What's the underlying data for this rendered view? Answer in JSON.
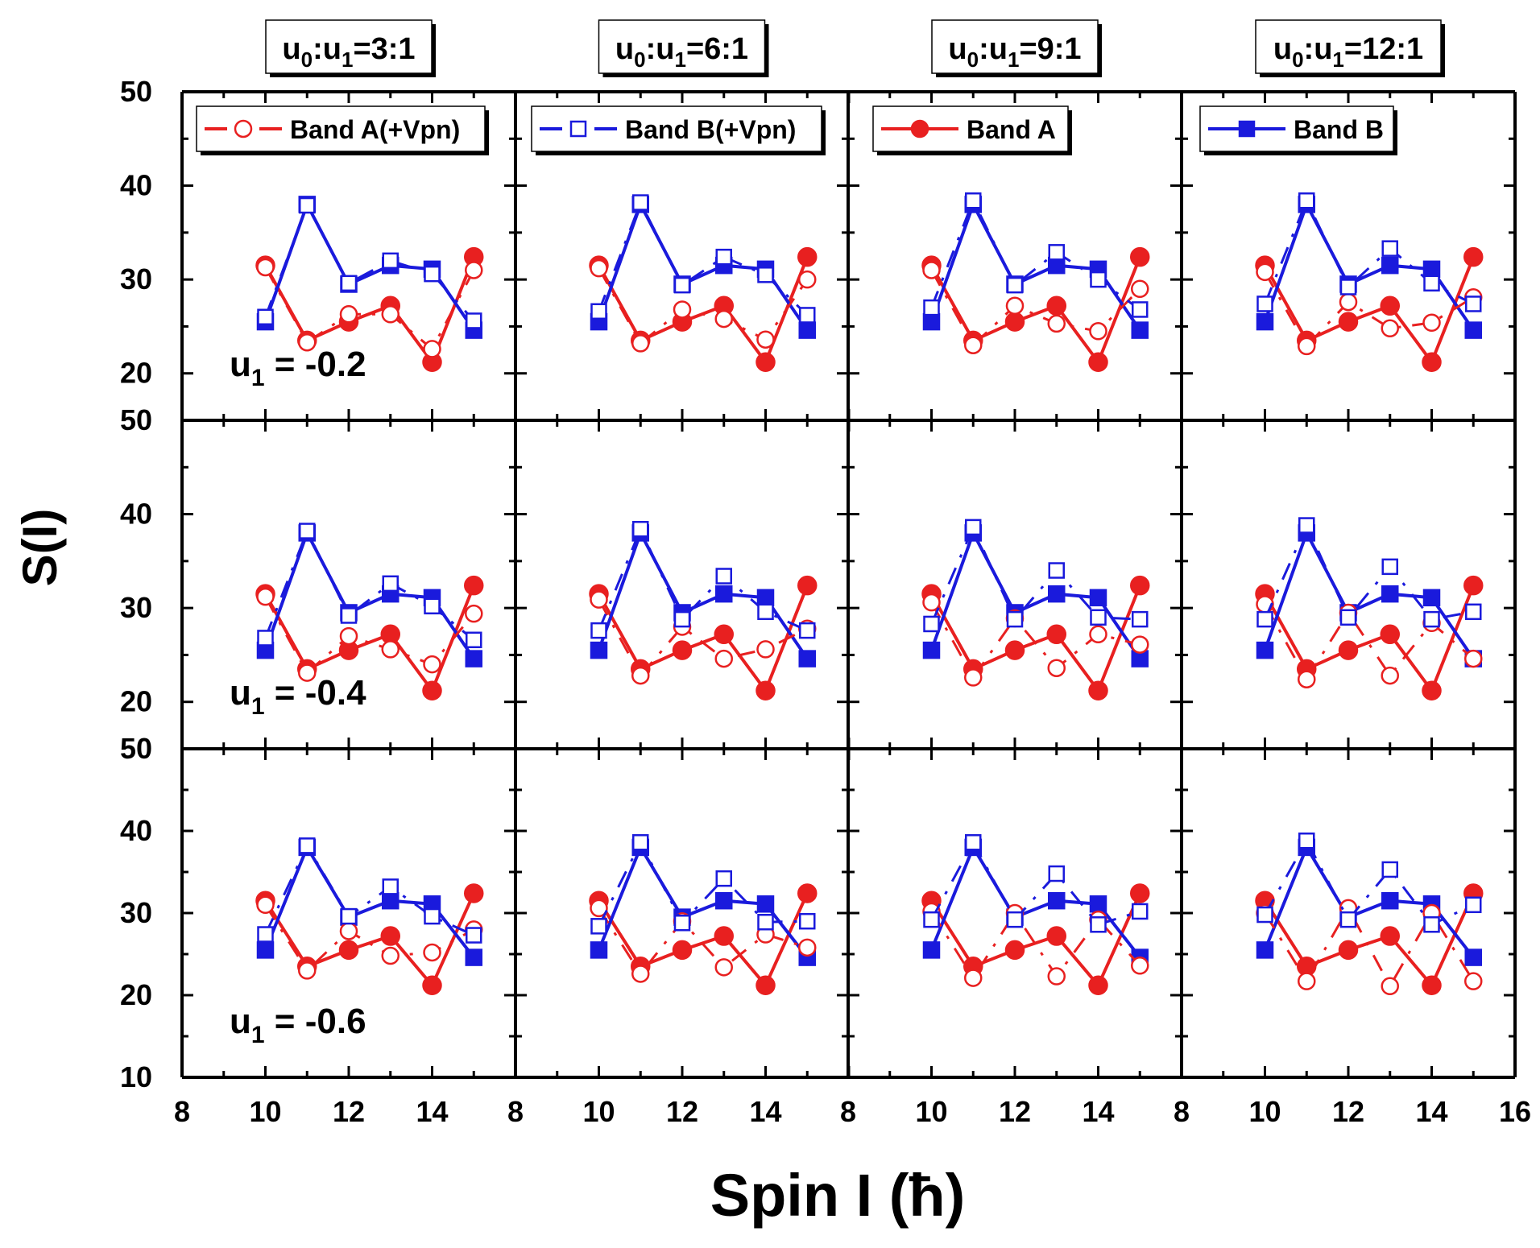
{
  "colors": {
    "band_a": "#e82020",
    "band_b": "#1a1adc",
    "axis": "#000000",
    "background": "#ffffff"
  },
  "figure": {
    "ylabel": "S(I)",
    "xlabel": "Spin I (ħ)"
  },
  "column_headers": [
    {
      "base": "u",
      "sub0": "0",
      "sep": ":u",
      "sub1": "1",
      "ratio": "=3:1"
    },
    {
      "base": "u",
      "sub0": "0",
      "sep": ":u",
      "sub1": "1",
      "ratio": "=6:1"
    },
    {
      "base": "u",
      "sub0": "0",
      "sep": ":u",
      "sub1": "1",
      "ratio": "=9:1"
    },
    {
      "base": "u",
      "sub0": "0",
      "sep": ":u",
      "sub1": "1",
      "ratio": "=12:1"
    }
  ],
  "row_labels": [
    {
      "base": "u",
      "sub": "1",
      "value": " = -0.2"
    },
    {
      "base": "u",
      "sub": "1",
      "value": " = -0.4"
    },
    {
      "base": "u",
      "sub": "1",
      "value": " = -0.6"
    }
  ],
  "legend": [
    {
      "label": "Band A(+Vpn)",
      "series": "band_a_vpn",
      "panel_col": 0
    },
    {
      "label": "Band B(+Vpn)",
      "series": "band_b_vpn",
      "panel_col": 1
    },
    {
      "label": "Band A",
      "series": "band_a",
      "panel_col": 2
    },
    {
      "label": "Band B",
      "series": "band_b",
      "panel_col": 3
    }
  ],
  "axis": {
    "x_ticks_first": [
      "8",
      "10",
      "12",
      "14"
    ],
    "x_ticks_last": [
      "8",
      "10",
      "12",
      "14",
      "16"
    ],
    "y_ticks_top": [
      "20",
      "30",
      "40",
      "50"
    ],
    "y_ticks_bottom": [
      "10",
      "20",
      "30",
      "40",
      "50"
    ]
  },
  "chart_data": {
    "type": "line",
    "layout": "3x4 grid of panels sharing axes",
    "xlabel": "Spin I (ħ)",
    "ylabel": "S(I)",
    "xlim": [
      8,
      16
    ],
    "ylim_top_rows": [
      15,
      50
    ],
    "ylim_bottom_row": [
      10,
      50
    ],
    "x": [
      10,
      11,
      12,
      13,
      14,
      15
    ],
    "band_a": [
      31.5,
      23.5,
      25.5,
      27.2,
      21.2,
      32.4
    ],
    "band_b": [
      25.5,
      38.0,
      29.5,
      31.5,
      31.1,
      24.6
    ],
    "panels": [
      {
        "row": 0,
        "col": 0,
        "band_a_vpn": [
          31.3,
          23.3,
          26.3,
          26.3,
          22.6,
          31.0
        ],
        "band_b_vpn": [
          26.0,
          37.9,
          29.6,
          32.0,
          30.6,
          25.6
        ]
      },
      {
        "row": 0,
        "col": 1,
        "band_a_vpn": [
          31.2,
          23.2,
          26.8,
          25.8,
          23.6,
          30.0
        ],
        "band_b_vpn": [
          26.6,
          38.2,
          29.4,
          32.4,
          30.5,
          26.2
        ]
      },
      {
        "row": 0,
        "col": 2,
        "band_a_vpn": [
          31.0,
          23.0,
          27.2,
          25.3,
          24.5,
          29.0
        ],
        "band_b_vpn": [
          27.0,
          38.4,
          29.4,
          32.9,
          30.0,
          26.8
        ]
      },
      {
        "row": 0,
        "col": 3,
        "band_a_vpn": [
          30.8,
          22.9,
          27.6,
          24.8,
          25.4,
          28.1
        ],
        "band_b_vpn": [
          27.4,
          38.4,
          29.2,
          33.3,
          29.6,
          27.4
        ]
      },
      {
        "row": 1,
        "col": 0,
        "band_a_vpn": [
          31.2,
          23.1,
          27.0,
          25.6,
          24.0,
          29.4
        ],
        "band_b_vpn": [
          26.8,
          38.2,
          29.2,
          32.6,
          30.2,
          26.6
        ]
      },
      {
        "row": 1,
        "col": 1,
        "band_a_vpn": [
          30.9,
          22.8,
          28.0,
          24.6,
          25.6,
          27.8
        ],
        "band_b_vpn": [
          27.6,
          38.4,
          28.8,
          33.4,
          29.6,
          27.6
        ]
      },
      {
        "row": 1,
        "col": 2,
        "band_a_vpn": [
          30.6,
          22.6,
          28.9,
          23.6,
          27.2,
          26.1
        ],
        "band_b_vpn": [
          28.3,
          38.6,
          28.8,
          34.0,
          29.0,
          28.8
        ]
      },
      {
        "row": 1,
        "col": 3,
        "band_a_vpn": [
          30.4,
          22.4,
          29.5,
          22.8,
          28.4,
          24.6
        ],
        "band_b_vpn": [
          28.8,
          38.8,
          29.0,
          34.4,
          28.8,
          29.6
        ]
      },
      {
        "row": 2,
        "col": 0,
        "band_a_vpn": [
          31.0,
          23.0,
          27.8,
          24.8,
          25.2,
          28.0
        ],
        "band_b_vpn": [
          27.4,
          38.2,
          29.6,
          33.2,
          29.6,
          27.3
        ]
      },
      {
        "row": 2,
        "col": 1,
        "band_a_vpn": [
          30.6,
          22.6,
          29.0,
          23.4,
          27.4,
          25.8
        ],
        "band_b_vpn": [
          28.4,
          38.6,
          28.8,
          34.2,
          28.9,
          29.0
        ]
      },
      {
        "row": 2,
        "col": 2,
        "band_a_vpn": [
          30.2,
          22.1,
          30.0,
          22.3,
          29.2,
          23.6
        ],
        "band_b_vpn": [
          29.2,
          38.6,
          29.2,
          34.8,
          28.6,
          30.2
        ]
      },
      {
        "row": 2,
        "col": 3,
        "band_a_vpn": [
          30.0,
          21.7,
          30.6,
          21.1,
          30.0,
          21.7
        ],
        "band_b_vpn": [
          29.8,
          38.8,
          29.2,
          35.3,
          28.6,
          31.0
        ]
      }
    ]
  }
}
